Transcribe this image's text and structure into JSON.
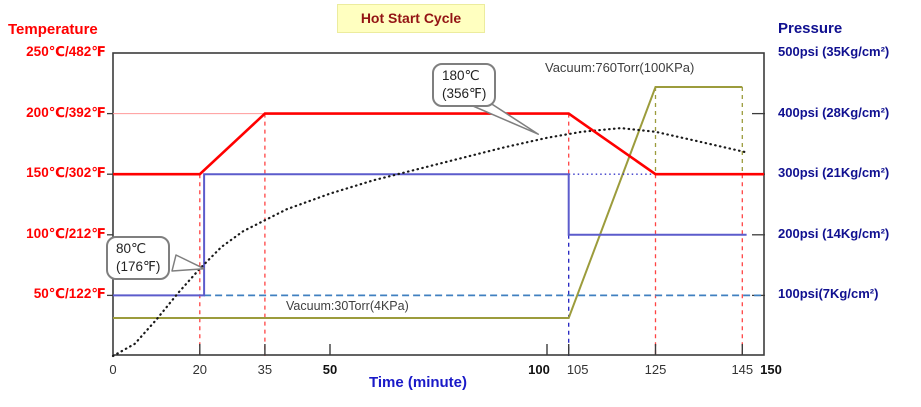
{
  "title": {
    "text": "Hot Start Cycle"
  },
  "header": {
    "left": "Temperature",
    "right": "Pressure"
  },
  "x_axis": {
    "label": "Time (minute)",
    "ticks": [
      {
        "t": 0,
        "label": "0",
        "bold": false,
        "dx": 0
      },
      {
        "t": 20,
        "label": "20",
        "bold": false,
        "dx": 0
      },
      {
        "t": 35,
        "label": "35",
        "bold": false,
        "dx": 0
      },
      {
        "t": 50,
        "label": "50",
        "bold": true,
        "dx": 0
      },
      {
        "t": 100,
        "label": "100",
        "bold": true,
        "dx": -8
      },
      {
        "t": 105,
        "label": "105",
        "bold": false,
        "dx": 9
      },
      {
        "t": 125,
        "label": "125",
        "bold": false,
        "dx": 0
      },
      {
        "t": 145,
        "label": "145",
        "bold": false,
        "dx": 0
      },
      {
        "t": 150,
        "label": "150",
        "bold": true,
        "dx": 7
      }
    ]
  },
  "left_axis": {
    "ticks": [
      {
        "temp": 250,
        "label": "250℃/482℉"
      },
      {
        "temp": 200,
        "label": "200℃/392℉"
      },
      {
        "temp": 150,
        "label": "150℃/302℉"
      },
      {
        "temp": 100,
        "label": "100℃/212℉"
      },
      {
        "temp": 50,
        "label": "50℃/122℉"
      }
    ]
  },
  "right_axis": {
    "ticks": [
      {
        "psi": 500,
        "label": "500psi (35Kg/cm²)"
      },
      {
        "psi": 400,
        "label": "400psi (28Kg/cm²)"
      },
      {
        "psi": 300,
        "label": "300psi (21Kg/cm²)"
      },
      {
        "psi": 200,
        "label": "200psi (14Kg/cm²)"
      },
      {
        "psi": 100,
        "label": "100psi(7Kg/cm²)"
      }
    ]
  },
  "annotations": {
    "callout_low": {
      "lines": [
        "80℃",
        "(176℉)"
      ],
      "target": {
        "t": 21,
        "temp": 72
      }
    },
    "callout_high": {
      "lines": [
        "180℃",
        "(356℉)"
      ],
      "target": {
        "t": 98,
        "temp": 183
      }
    },
    "vacuum_high_label": "Vacuum:760Torr(100KPa)",
    "vacuum_low_label": "Vacuum:30Torr(4KPa)"
  },
  "chart_data": {
    "type": "line",
    "title": "Hot Start Cycle",
    "xlabel": "Time (minute)",
    "x_range": [
      0,
      150
    ],
    "y_left_axis": {
      "unit": "°C",
      "range": [
        0,
        250
      ],
      "gridlines": [
        50,
        100,
        150,
        200,
        250
      ]
    },
    "y_right_axis": {
      "unit": "psi",
      "range": [
        0,
        500
      ],
      "gridlines": [
        100,
        200,
        300,
        400,
        500
      ]
    },
    "vacuum_axis": {
      "unit": "Torr",
      "low": 30,
      "high": 760
    },
    "series": [
      {
        "name": "gridline-200c",
        "yscale": "temp",
        "color": "#FF9999",
        "width": 1,
        "style": "solid",
        "points": [
          [
            0,
            200
          ],
          [
            35,
            200
          ]
        ]
      },
      {
        "name": "vacuum-torr",
        "yscale": "vac",
        "color": "#9C9C3C",
        "width": 2,
        "style": "solid",
        "points": [
          [
            0,
            30
          ],
          [
            105,
            30
          ],
          [
            125,
            760
          ],
          [
            145,
            760
          ]
        ]
      },
      {
        "name": "pressure-100psi-hold-dashed",
        "yscale": "press",
        "color": "#4080C0",
        "width": 1.8,
        "style": "dashed",
        "points": [
          [
            21,
            100
          ],
          [
            150,
            100
          ]
        ]
      },
      {
        "name": "pressure-300psi-ref-dotted",
        "yscale": "press",
        "color": "#3535C8",
        "width": 1.4,
        "style": "dotted",
        "points": [
          [
            105,
            300
          ],
          [
            150,
            300
          ]
        ]
      },
      {
        "name": "pressure-psi",
        "yscale": "press",
        "color": "#5C5CCC",
        "width": 2,
        "style": "solid",
        "points": [
          [
            0,
            100
          ],
          [
            21,
            100
          ],
          [
            21,
            300
          ],
          [
            105,
            300
          ],
          [
            105,
            200
          ],
          [
            146,
            200
          ]
        ]
      },
      {
        "name": "actual-temperature-dotted",
        "yscale": "temp",
        "color": "#1A1A1A",
        "width": 2.2,
        "style": "dotted-round",
        "points": [
          [
            0,
            0
          ],
          [
            5,
            10
          ],
          [
            10,
            30
          ],
          [
            15,
            52
          ],
          [
            20,
            72
          ],
          [
            25,
            90
          ],
          [
            30,
            103
          ],
          [
            40,
            121
          ],
          [
            50,
            134
          ],
          [
            60,
            145
          ],
          [
            70,
            154
          ],
          [
            80,
            163
          ],
          [
            90,
            172
          ],
          [
            100,
            180
          ],
          [
            108,
            185
          ],
          [
            117,
            188
          ],
          [
            125,
            185
          ],
          [
            135,
            177
          ],
          [
            146,
            168
          ]
        ]
      },
      {
        "name": "set-temperature",
        "yscale": "temp",
        "color": "#FF0000",
        "width": 2.6,
        "style": "solid",
        "points": [
          [
            0,
            150
          ],
          [
            20,
            150
          ],
          [
            35,
            200
          ],
          [
            105,
            200
          ],
          [
            125,
            150
          ],
          [
            150,
            150
          ]
        ]
      }
    ],
    "guides": [
      {
        "t": 20,
        "color": "#FF4444",
        "a": [
          "temp",
          150
        ],
        "b": [
          "temp",
          0
        ]
      },
      {
        "t": 35,
        "color": "#FF4444",
        "a": [
          "temp",
          200
        ],
        "b": [
          "temp",
          0
        ]
      },
      {
        "t": 105,
        "color": "#FF4444",
        "a": [
          "temp",
          200
        ],
        "b": [
          "temp",
          150
        ]
      },
      {
        "t": 105,
        "color": "#2020C0",
        "a": [
          "press",
          200
        ],
        "b": [
          "press",
          0
        ]
      },
      {
        "t": 125,
        "color": "#9C9C3C",
        "a": [
          "vac",
          760
        ],
        "b": [
          "temp",
          150
        ]
      },
      {
        "t": 125,
        "color": "#FF4444",
        "a": [
          "temp",
          150
        ],
        "b": [
          "temp",
          0
        ]
      },
      {
        "t": 145,
        "color": "#9C9C3C",
        "a": [
          "vac",
          760
        ],
        "b": [
          "temp",
          150
        ]
      },
      {
        "t": 145,
        "color": "#FF4444",
        "a": [
          "temp",
          150
        ],
        "b": [
          "temp",
          0
        ]
      }
    ]
  },
  "colors": {
    "temperature": "#FF0000",
    "pressure": "#5C5CCC",
    "vacuum": "#9C9C3C",
    "actual_temperature": "#1A1A1A",
    "axis": "#3C3C3C",
    "title_bg": "#FFFFC0",
    "title_text": "#931414",
    "pressure_text": "#101090",
    "time_text": "#1A1AC8"
  }
}
